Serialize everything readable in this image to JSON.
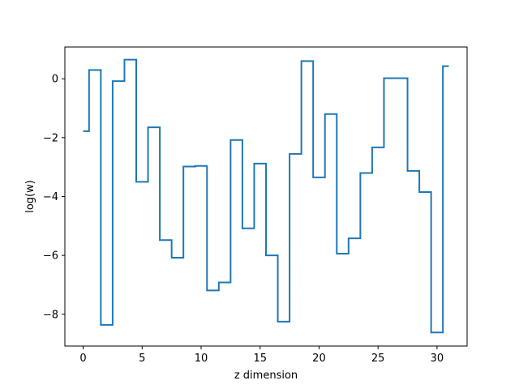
{
  "chart_data": {
    "type": "line",
    "drawstyle": "steps-mid",
    "title": "",
    "xlabel": "z dimension",
    "ylabel": "log(w)",
    "xlim": [
      -1.55,
      32.55
    ],
    "ylim": [
      -9.08,
      1.08
    ],
    "xticks": [
      0,
      5,
      10,
      15,
      20,
      25,
      30
    ],
    "xtick_labels": [
      "0",
      "5",
      "10",
      "15",
      "20",
      "25",
      "30"
    ],
    "yticks": [
      0,
      -2,
      -4,
      -6,
      -8
    ],
    "ytick_labels": [
      "0",
      "−2",
      "−4",
      "−6",
      "−8"
    ],
    "grid": false,
    "series": [
      {
        "color": "#1f77b4",
        "x": [
          0,
          1,
          2,
          3,
          4,
          5,
          6,
          7,
          8,
          9,
          10,
          11,
          12,
          13,
          14,
          15,
          16,
          17,
          18,
          19,
          20,
          21,
          22,
          23,
          24,
          25,
          26,
          27,
          28,
          29,
          30,
          31
        ],
        "values": [
          -1.78,
          0.3,
          -8.36,
          -0.08,
          0.65,
          -3.5,
          -1.65,
          -5.48,
          -6.08,
          -2.98,
          -2.96,
          -7.19,
          -6.92,
          -2.08,
          -5.08,
          -2.88,
          -6.0,
          -8.25,
          -2.55,
          0.6,
          -3.35,
          -1.2,
          -5.94,
          -5.42,
          -3.2,
          -2.33,
          0.02,
          0.02,
          -3.13,
          -3.85,
          -8.62,
          0.43
        ]
      }
    ]
  }
}
